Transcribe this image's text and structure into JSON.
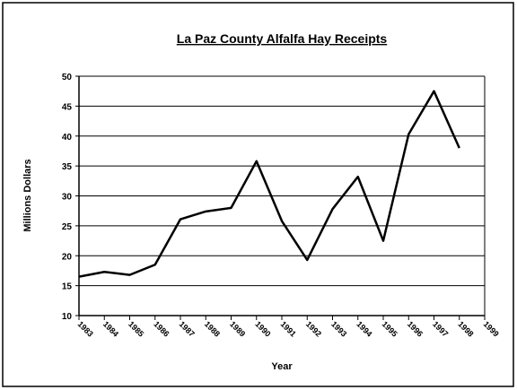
{
  "chart_data": {
    "type": "line",
    "title": "La Paz County Alfalfa Hay Receipts",
    "x_label": "Year",
    "y_label": "Millions Dollars",
    "categories": [
      "1983",
      "1984",
      "1985",
      "1986",
      "1987",
      "1988",
      "1989",
      "1990",
      "1991",
      "1992",
      "1993",
      "1994",
      "1995",
      "1996",
      "1997",
      "1998",
      "1999"
    ],
    "series": [
      {
        "name": "Receipts",
        "color": "#000000",
        "values": [
          16.5,
          17.3,
          16.8,
          18.5,
          26.1,
          27.4,
          28.0,
          35.8,
          25.8,
          19.3,
          27.8,
          33.2,
          22.5,
          40.3,
          47.5,
          38.0,
          null
        ]
      }
    ],
    "ylim": [
      10,
      50
    ],
    "yticks": [
      10,
      15,
      20,
      25,
      30,
      35,
      40,
      45,
      50
    ],
    "grid": true
  }
}
